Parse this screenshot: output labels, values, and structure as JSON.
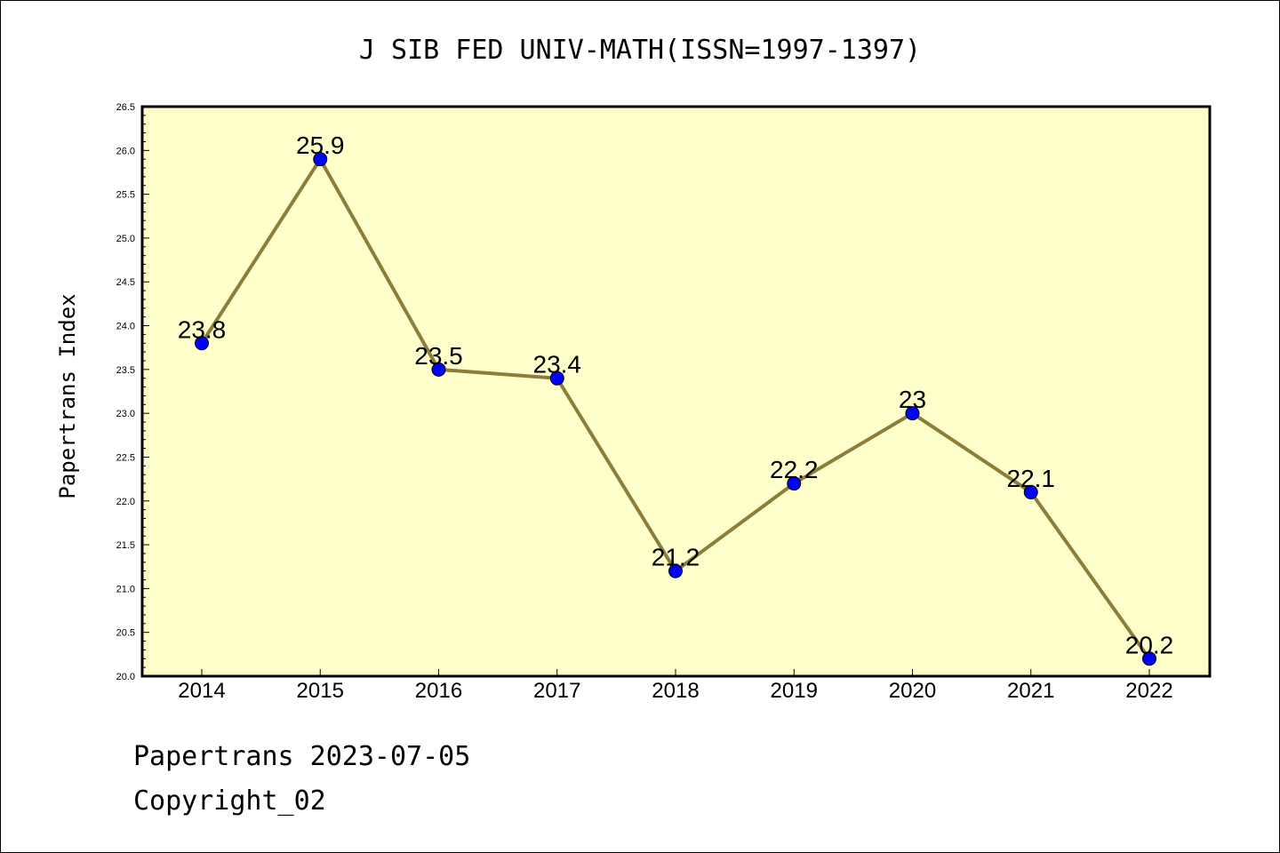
{
  "chart_data": {
    "type": "line",
    "title": "J SIB FED UNIV-MATH(ISSN=1997-1397)",
    "xlabel": "",
    "ylabel": "Papertrans Index",
    "categories": [
      "2014",
      "2015",
      "2016",
      "2017",
      "2018",
      "2019",
      "2020",
      "2021",
      "2022"
    ],
    "values": [
      23.8,
      25.9,
      23.5,
      23.4,
      21.2,
      22.2,
      23,
      22.1,
      20.2
    ],
    "data_labels": [
      "23.8",
      "25.9",
      "23.5",
      "23.4",
      "21.2",
      "22.2",
      "23",
      "22.1",
      "20.2"
    ],
    "ylim": [
      20.0,
      26.5
    ],
    "yticks": [
      "20.0",
      "20.5",
      "21.0",
      "21.5",
      "22.0",
      "22.5",
      "23.0",
      "23.5",
      "24.0",
      "24.5",
      "25.0",
      "25.5",
      "26.0",
      "26.5"
    ],
    "grid": false,
    "colors": {
      "plot_background": "#ffffcc",
      "line": "#8b7d3a",
      "marker": "#0000ff"
    }
  },
  "footer": {
    "line1": "Papertrans 2023-07-05",
    "line2": "Copyright_02"
  }
}
